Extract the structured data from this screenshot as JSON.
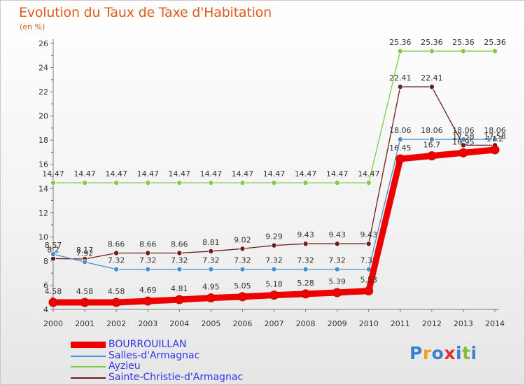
{
  "chart_data": {
    "type": "line",
    "title": "Evolution du Taux de Taxe d'Habitation",
    "subtitle": "(en %)",
    "x": [
      "2000",
      "2001",
      "2002",
      "2003",
      "2004",
      "2005",
      "2006",
      "2007",
      "2008",
      "2009",
      "2010",
      "2011",
      "2012",
      "2013",
      "2014"
    ],
    "ylim": [
      4,
      26
    ],
    "yticks": [
      4,
      6,
      8,
      10,
      12,
      14,
      16,
      18,
      20,
      22,
      24,
      26
    ],
    "grid": false,
    "legend_position": "bottom-left",
    "series": [
      {
        "name": "Sainte-Christie-d'Armagnac",
        "color": "#6b1f1f",
        "values": [
          8.2,
          8.17,
          8.66,
          8.66,
          8.66,
          8.81,
          9.02,
          9.29,
          9.43,
          9.43,
          9.43,
          22.41,
          22.41,
          17.58,
          17.58
        ],
        "labels": [
          "8.2",
          "8.17",
          "8.66",
          "8.66",
          "8.66",
          "8.81",
          "9.02",
          "9.29",
          "9.43",
          "9.43",
          "9.43",
          "22.41",
          "22.41",
          "17.58",
          "17.58"
        ]
      },
      {
        "name": "Ayzieu",
        "color": "#80cc44",
        "values": [
          14.47,
          14.47,
          14.47,
          14.47,
          14.47,
          14.47,
          14.47,
          14.47,
          14.47,
          14.47,
          14.47,
          25.36,
          25.36,
          25.36,
          25.36
        ],
        "labels": [
          "14.47",
          "14.47",
          "14.47",
          "14.47",
          "14.47",
          "14.47",
          "14.47",
          "14.47",
          "14.47",
          "14.47",
          "14.47",
          "25.36",
          "25.36",
          "25.36",
          "25.36"
        ]
      },
      {
        "name": "Salles-d'Armagnac",
        "color": "#4a90c8",
        "values": [
          8.57,
          7.92,
          7.32,
          7.32,
          7.32,
          7.32,
          7.32,
          7.32,
          7.32,
          7.32,
          7.32,
          18.06,
          18.06,
          18.06,
          18.06
        ],
        "labels": [
          "8.57",
          "7.92",
          "7.32",
          "7.32",
          "7.32",
          "7.32",
          "7.32",
          "7.32",
          "7.32",
          "7.32",
          "7.32",
          "18.06",
          "18.06",
          "18.06",
          "18.06"
        ]
      },
      {
        "name": "BOURROUILLAN",
        "color": "#ee0000",
        "values": [
          4.58,
          4.58,
          4.58,
          4.69,
          4.81,
          4.95,
          5.05,
          5.18,
          5.28,
          5.39,
          5.53,
          16.45,
          16.7,
          16.95,
          17.2
        ],
        "labels": [
          "4.58",
          "4.58",
          "4.58",
          "4.69",
          "4.81",
          "4.95",
          "5.05",
          "5.18",
          "5.28",
          "5.39",
          "5.53",
          "16.45",
          "16.7",
          "16.95",
          "17.2"
        ]
      }
    ]
  },
  "legend": [
    {
      "name": "BOURROUILLAN",
      "color": "#ee0000"
    },
    {
      "name": "Salles-d'Armagnac",
      "color": "#4a90c8"
    },
    {
      "name": "Ayzieu",
      "color": "#80cc44"
    },
    {
      "name": "Sainte-Christie-d'Armagnac",
      "color": "#6b1f1f"
    }
  ],
  "brand": {
    "letters": [
      "P",
      "r",
      "o",
      "x",
      "i",
      "t",
      "i"
    ],
    "colors": [
      "#3a7fd0",
      "#f0a020",
      "#3a7fd0",
      "#e03030",
      "#3a7fd0",
      "#80c040",
      "#3a7fd0"
    ]
  }
}
